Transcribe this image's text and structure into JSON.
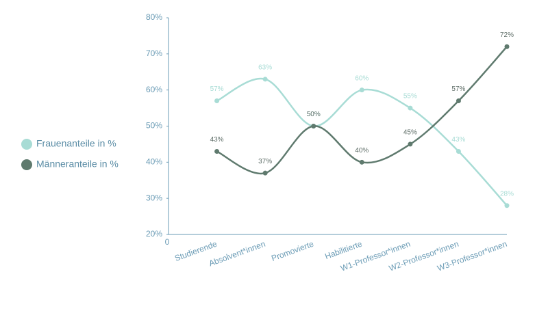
{
  "chart_data": {
    "type": "line",
    "categories": [
      "Studierende",
      "Absolvent*innen",
      "Promovierte",
      "Habilitierte",
      "W1-Professor*innen",
      "W2-Professor*innen",
      "W3-Professor*innen"
    ],
    "series": [
      {
        "name": "Frauenanteile in %",
        "color": "#a8dcd5",
        "values": [
          57,
          63,
          50,
          60,
          55,
          43,
          28
        ],
        "value_labels": [
          "57%",
          "63%",
          "50%",
          "60%",
          "55%",
          "43%",
          "28%"
        ]
      },
      {
        "name": "Männeranteile in %",
        "color": "#5f7a6e",
        "values": [
          43,
          37,
          50,
          40,
          45,
          57,
          72
        ],
        "value_labels": [
          "43%",
          "37%",
          "50%",
          "40%",
          "45%",
          "57%",
          "72%"
        ]
      }
    ],
    "ylim": [
      20,
      80
    ],
    "yticks": [
      {
        "value": 20,
        "label": "20%"
      },
      {
        "value": 30,
        "label": "30%"
      },
      {
        "value": 40,
        "label": "40%"
      },
      {
        "value": 50,
        "label": "50%"
      },
      {
        "value": 60,
        "label": "60%"
      },
      {
        "value": 70,
        "label": "70%"
      },
      {
        "value": 80,
        "label": "80%"
      }
    ],
    "x_axis_origin_label": "0",
    "grid": false,
    "legend": "left"
  }
}
